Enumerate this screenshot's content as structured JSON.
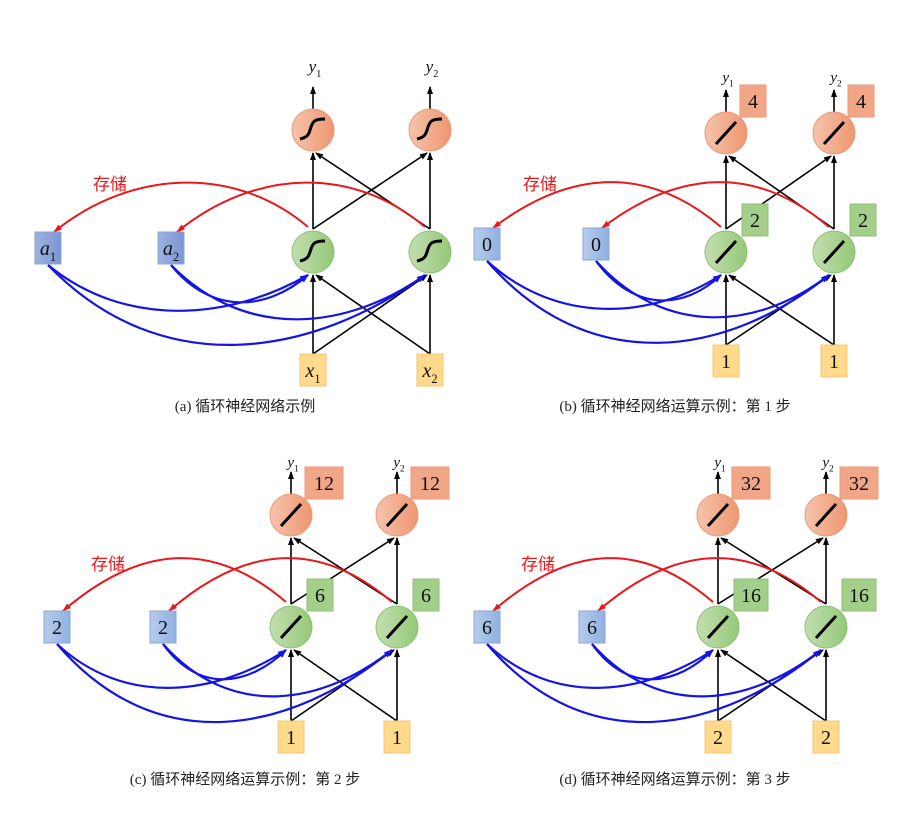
{
  "colors": {
    "memory": "#9db7e2",
    "memory_dark": "#8299d0",
    "hidden": "#a6cf8c",
    "output": "#f2a688",
    "input": "#ffd98c",
    "store_arrow": "#e8181c",
    "recurrent_arrow": "#1414e6",
    "edge": "#000000"
  },
  "panels": [
    {
      "caption": "(a) 循环神经网络示例",
      "storage_label": "存储",
      "activation": "sigmoid",
      "memory": [
        {
          "text": "a",
          "sub": "1"
        },
        {
          "text": "a",
          "sub": "2"
        }
      ],
      "inputs": [
        {
          "text": "x",
          "sub": "1"
        },
        {
          "text": "x",
          "sub": "2"
        }
      ],
      "outputs": [
        {
          "text": "y",
          "sub": "1"
        },
        {
          "text": "y",
          "sub": "2"
        }
      ],
      "hidden_values": [],
      "output_values": []
    },
    {
      "caption": "(b) 循环神经网络运算示例：第 1 步",
      "storage_label": "存储",
      "activation": "linear",
      "memory": [
        {
          "text": "0"
        },
        {
          "text": "0"
        }
      ],
      "inputs": [
        {
          "text": "1"
        },
        {
          "text": "1"
        }
      ],
      "outputs": [
        {
          "text": "y",
          "sub": "1"
        },
        {
          "text": "y",
          "sub": "2"
        }
      ],
      "hidden_values": [
        "2",
        "2"
      ],
      "output_values": [
        "4",
        "4"
      ]
    },
    {
      "caption": "(c) 循环神经网络运算示例：第 2 步",
      "storage_label": "存储",
      "activation": "linear",
      "memory": [
        {
          "text": "2"
        },
        {
          "text": "2"
        }
      ],
      "inputs": [
        {
          "text": "1"
        },
        {
          "text": "1"
        }
      ],
      "outputs": [
        {
          "text": "y",
          "sub": "1"
        },
        {
          "text": "y",
          "sub": "2"
        }
      ],
      "hidden_values": [
        "6",
        "6"
      ],
      "output_values": [
        "12",
        "12"
      ]
    },
    {
      "caption": "(d) 循环神经网络运算示例：第 3 步",
      "storage_label": "存储",
      "activation": "linear",
      "memory": [
        {
          "text": "6"
        },
        {
          "text": "6"
        }
      ],
      "inputs": [
        {
          "text": "2"
        },
        {
          "text": "2"
        }
      ],
      "outputs": [
        {
          "text": "y",
          "sub": "1"
        },
        {
          "text": "y",
          "sub": "2"
        }
      ],
      "hidden_values": [
        "16",
        "16"
      ],
      "output_values": [
        "32",
        "32"
      ]
    }
  ]
}
